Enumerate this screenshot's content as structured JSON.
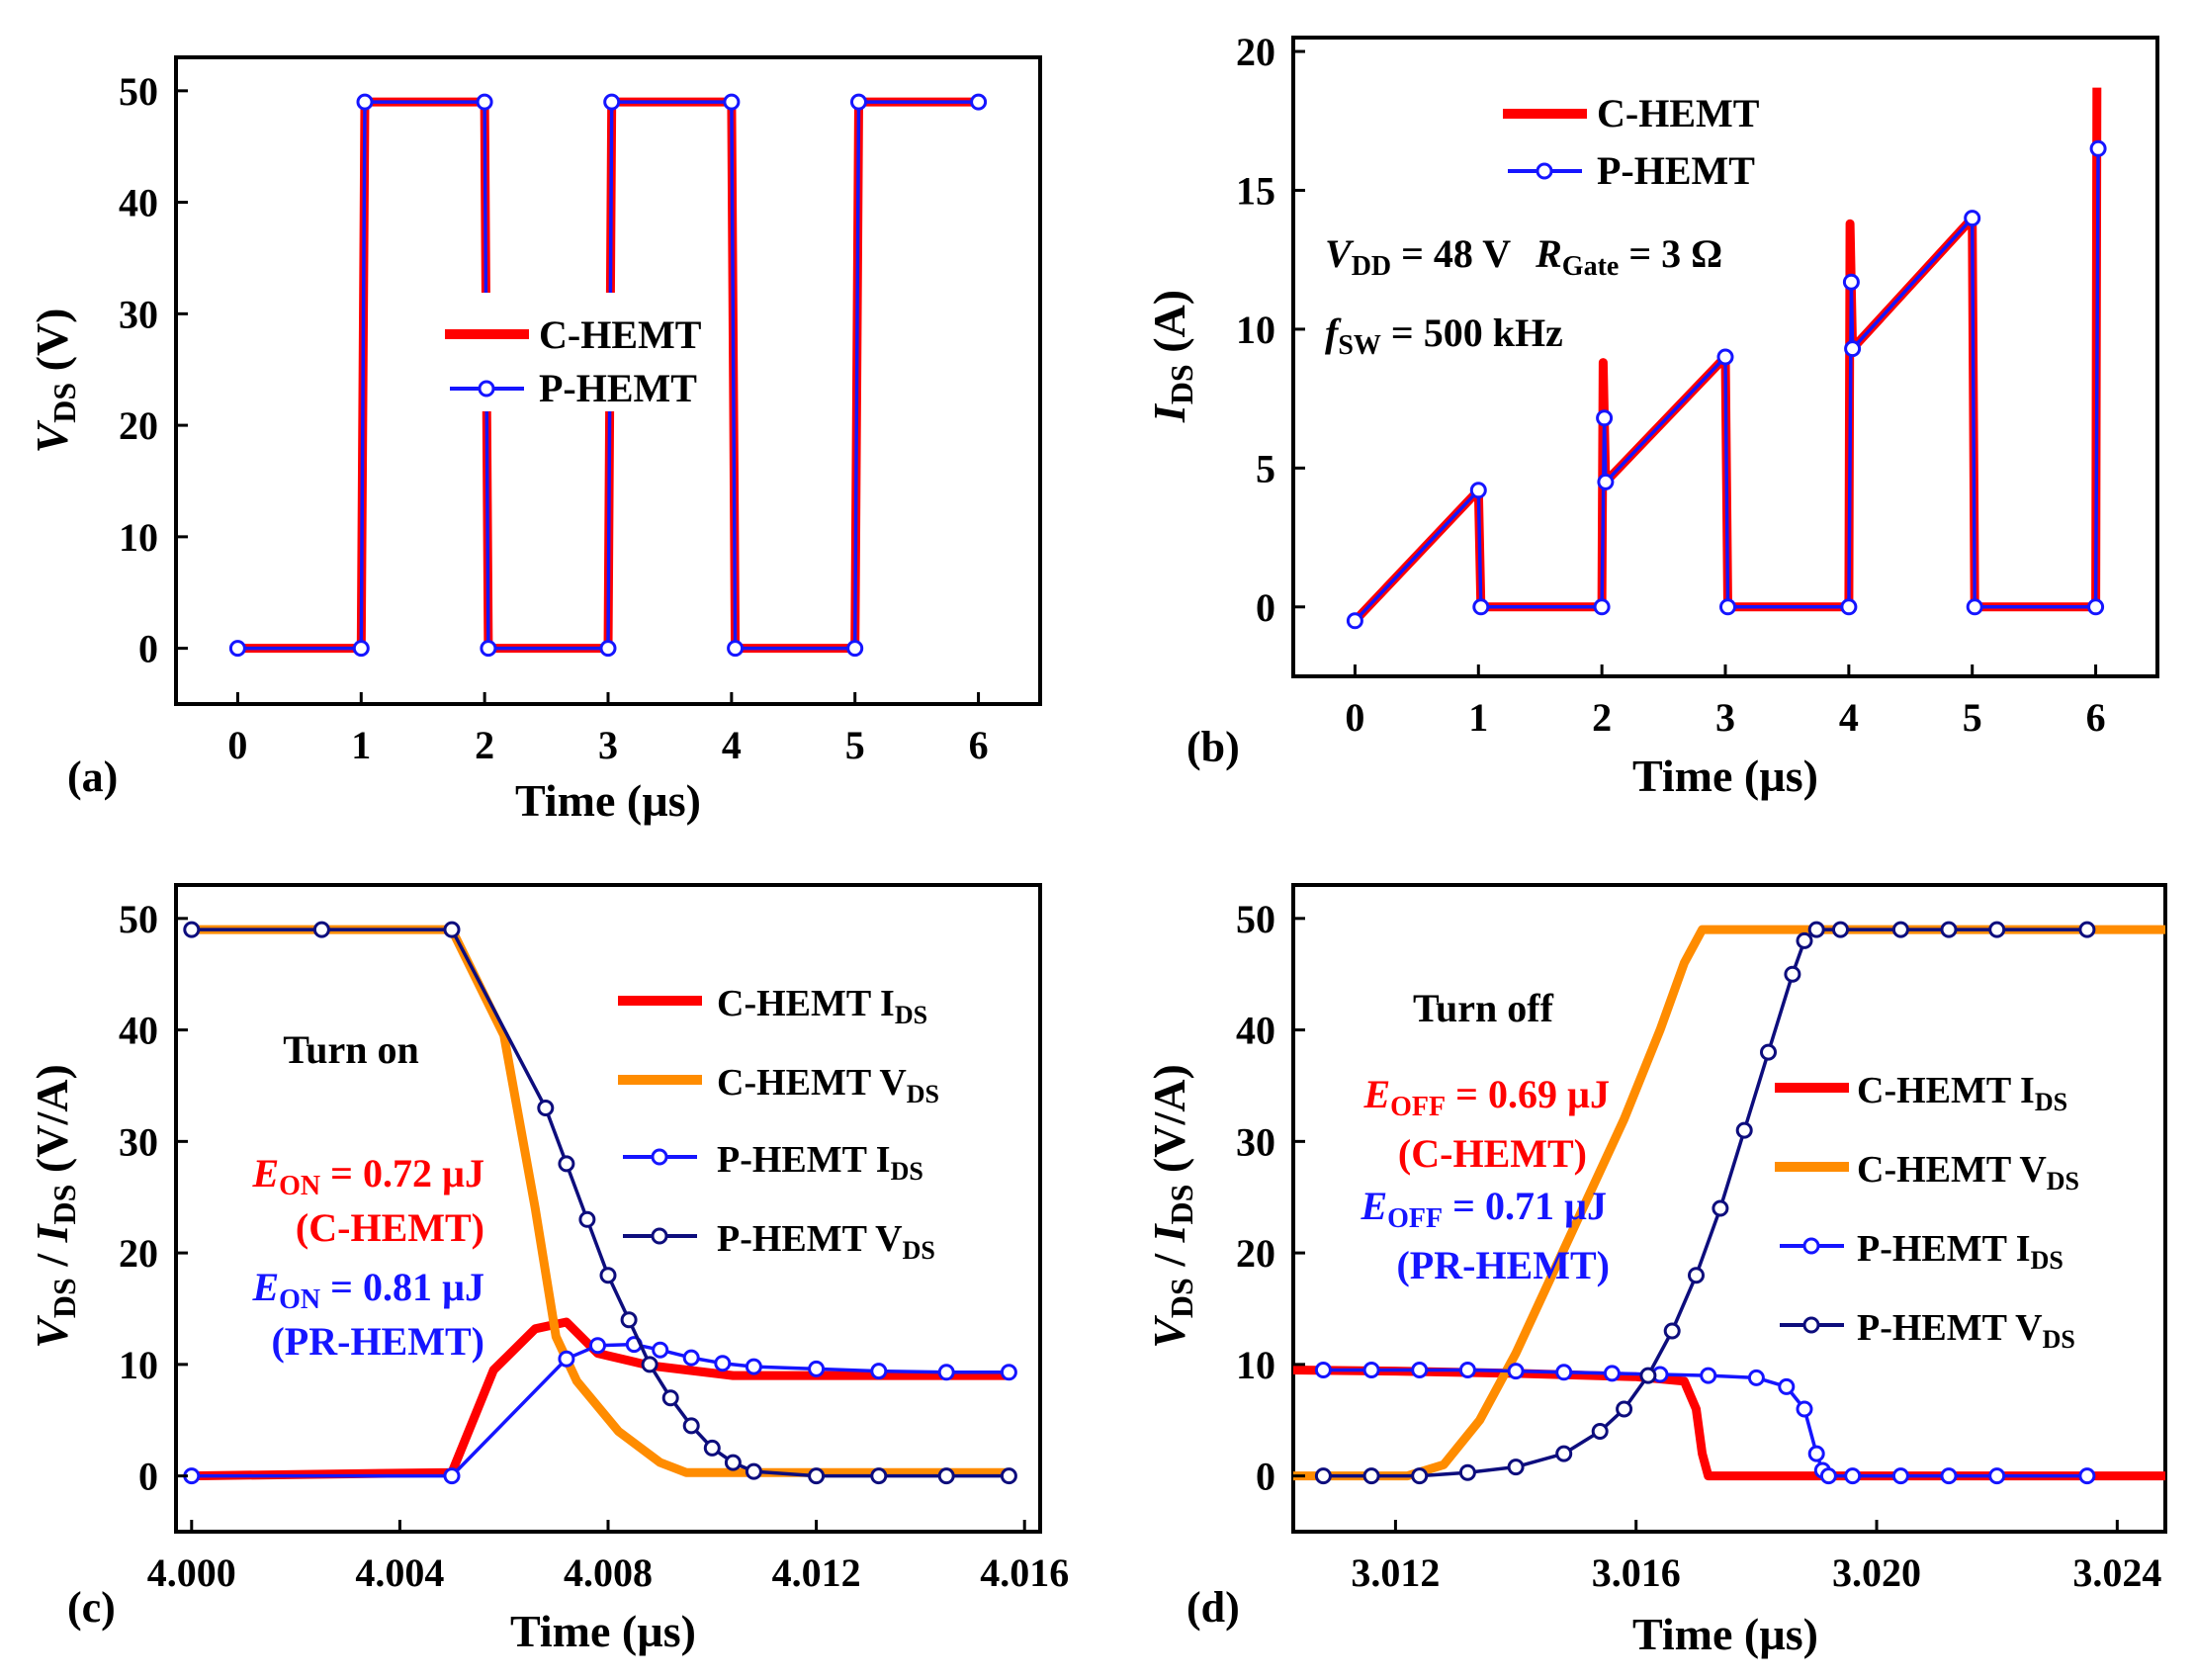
{
  "colors": {
    "c_ids": "#ff0000",
    "c_vds": "#ff8c00",
    "p_ids": "#1515ff",
    "p_vds": "#0d0d7d",
    "axis": "#000000"
  },
  "chart_data": [
    {
      "id": "a",
      "type": "line",
      "panel_label": "(a)",
      "xlabel": "Time (µs)",
      "ylabel_main": "V",
      "ylabel_sub": "DS",
      "ylabel_tail": " (V)",
      "xlim": [
        -0.5,
        6.5
      ],
      "ylim": [
        -5,
        53
      ],
      "xticks": [
        0,
        1,
        2,
        3,
        4,
        5,
        6
      ],
      "yticks": [
        0,
        10,
        20,
        30,
        40,
        50
      ],
      "xtick_labels": [
        "0",
        "1",
        "2",
        "3",
        "4",
        "5",
        "6"
      ],
      "ytick_labels": [
        "0",
        "10",
        "20",
        "30",
        "40",
        "50"
      ],
      "legend": [
        "C-HEMT",
        "P-HEMT"
      ],
      "series": [
        {
          "name": "C-HEMT",
          "style": "thick",
          "color": "#ff0000",
          "x": [
            0,
            1,
            1.03,
            2,
            2.03,
            3,
            3.03,
            4,
            4.03,
            5,
            5.03,
            6
          ],
          "y": [
            0,
            0,
            49,
            49,
            0,
            0,
            49,
            49,
            0,
            0,
            49,
            49
          ]
        },
        {
          "name": "P-HEMT",
          "style": "marker",
          "color": "#1515ff",
          "x": [
            0,
            1,
            1.03,
            2,
            2.03,
            3,
            3.03,
            4,
            4.03,
            5,
            5.03,
            6
          ],
          "y": [
            0,
            0,
            49,
            49,
            0,
            0,
            49,
            49,
            0,
            0,
            49,
            49
          ]
        }
      ]
    },
    {
      "id": "b",
      "type": "line",
      "panel_label": "(b)",
      "xlabel": "Time (µs)",
      "ylabel_main": "I",
      "ylabel_sub": "DS",
      "ylabel_tail": " (A)",
      "xlim": [
        -0.5,
        6.5
      ],
      "ylim": [
        -2.5,
        20.5
      ],
      "xticks": [
        0,
        1,
        2,
        3,
        4,
        5,
        6
      ],
      "yticks": [
        0,
        5,
        10,
        15,
        20
      ],
      "xtick_labels": [
        "0",
        "1",
        "2",
        "3",
        "4",
        "5",
        "6"
      ],
      "ytick_labels": [
        "0",
        "5",
        "10",
        "15",
        "20"
      ],
      "legend": [
        "C-HEMT",
        "P-HEMT"
      ],
      "annotations": {
        "vdd_main": "V",
        "vdd_sub": "DD",
        "vdd_val": " = 48 V",
        "rg_main": "R",
        "rg_sub": "Gate",
        "rg_val": " = 3 Ω",
        "fsw_main": "f",
        "fsw_sub": "SW",
        "fsw_val": " = 500 kHz"
      },
      "series": [
        {
          "name": "C-HEMT",
          "style": "thick",
          "color": "#ff0000",
          "x": [
            0,
            1,
            1.02,
            2,
            2.01,
            2.03,
            3,
            3.02,
            4,
            4.01,
            4.03,
            5,
            5.02,
            6,
            6.01
          ],
          "y": [
            -0.5,
            4.2,
            0,
            0,
            8.8,
            4.5,
            9,
            0,
            0,
            13.8,
            9.3,
            14,
            0,
            0,
            18.7
          ]
        },
        {
          "name": "P-HEMT",
          "style": "marker",
          "color": "#1515ff",
          "x": [
            0,
            1,
            1.02,
            2,
            2.02,
            2.03,
            3,
            3.02,
            4,
            4.02,
            4.03,
            5,
            5.02,
            6,
            6.02
          ],
          "y": [
            -0.5,
            4.2,
            0,
            0,
            6.8,
            4.5,
            9,
            0,
            0,
            11.7,
            9.3,
            14,
            0,
            0,
            16.5
          ]
        }
      ]
    },
    {
      "id": "c",
      "type": "line",
      "panel_label": "(c)",
      "xlabel": "Time (µs)",
      "ylabel_main": "V",
      "ylabel_sub": "DS",
      "ylabel_sep": " / ",
      "ylabel_main2": "I",
      "ylabel_sub2": "DS",
      "ylabel_tail": " (V/A)",
      "xlim": [
        3.9997,
        4.0163
      ],
      "ylim": [
        -5,
        53
      ],
      "xticks": [
        4.0,
        4.004,
        4.008,
        4.012,
        4.016
      ],
      "yticks": [
        0,
        10,
        20,
        30,
        40,
        50
      ],
      "xtick_labels": [
        "4.000",
        "4.004",
        "4.008",
        "4.012",
        "4.016"
      ],
      "ytick_labels": [
        "0",
        "10",
        "20",
        "30",
        "40",
        "50"
      ],
      "legend": [
        "C-HEMT I",
        "C-HEMT V",
        "P-HEMT I",
        "P-HEMT V"
      ],
      "legend_sub": "DS",
      "annotations": {
        "title": "Turn on",
        "e1_main": "E",
        "e1_sub": "ON",
        "e1_val": " = 0.72 µJ",
        "e1_dev": "(C-HEMT)",
        "e2_main": "E",
        "e2_sub": "ON",
        "e2_val": " = 0.81 µJ",
        "e2_dev": "(PR-HEMT)"
      },
      "series": [
        {
          "name": "C-HEMT IDS",
          "style": "thick",
          "color": "#ff0000",
          "x": [
            4.0,
            4.005,
            4.0058,
            4.0066,
            4.0072,
            4.0078,
            4.0088,
            4.0104,
            4.0157
          ],
          "y": [
            0,
            0.3,
            9.5,
            13.2,
            13.8,
            11,
            9.9,
            9,
            9
          ]
        },
        {
          "name": "C-HEMT VDS",
          "style": "thick",
          "color": "#ff8c00",
          "x": [
            4.0,
            4.005,
            4.006,
            4.0066,
            4.007,
            4.0074,
            4.0082,
            4.009,
            4.0095,
            4.0157
          ],
          "y": [
            49,
            49,
            39.5,
            24,
            12.5,
            8.5,
            4,
            1.2,
            0.3,
            0.3
          ]
        },
        {
          "name": "P-HEMT IDS",
          "style": "marker",
          "color": "#1515ff",
          "x": [
            4.0,
            4.005,
            4.0072,
            4.0078,
            4.0085,
            4.009,
            4.0096,
            4.0102,
            4.0108,
            4.012,
            4.0132,
            4.0145,
            4.0157
          ],
          "y": [
            0,
            0,
            10.5,
            11.7,
            11.8,
            11.3,
            10.6,
            10.1,
            9.8,
            9.6,
            9.4,
            9.3,
            9.3
          ]
        },
        {
          "name": "P-HEMT VDS",
          "style": "marker",
          "color": "#0d0d7d",
          "x": [
            4.0,
            4.0025,
            4.005,
            4.0068,
            4.0072,
            4.0076,
            4.008,
            4.0084,
            4.0088,
            4.0092,
            4.0096,
            4.01,
            4.0104,
            4.0108,
            4.012,
            4.0132,
            4.0145,
            4.0157
          ],
          "y": [
            49,
            49,
            49,
            33,
            28,
            23,
            18,
            14,
            10,
            7,
            4.5,
            2.5,
            1.2,
            0.4,
            0,
            0,
            0,
            0
          ]
        }
      ]
    },
    {
      "id": "d",
      "type": "line",
      "panel_label": "(d)",
      "xlabel": "Time (µs)",
      "ylabel_main": "V",
      "ylabel_sub": "DS",
      "ylabel_sep": " / ",
      "ylabel_main2": "I",
      "ylabel_sub2": "DS",
      "ylabel_tail": " (V/A)",
      "xlim": [
        3.0103,
        3.0248
      ],
      "ylim": [
        -5,
        53
      ],
      "xticks": [
        3.012,
        3.016,
        3.02,
        3.024
      ],
      "yticks": [
        0,
        10,
        20,
        30,
        40,
        50
      ],
      "xtick_labels": [
        "3.012",
        "3.016",
        "3.020",
        "3.024"
      ],
      "ytick_labels": [
        "0",
        "10",
        "20",
        "30",
        "40",
        "50"
      ],
      "legend": [
        "C-HEMT I",
        "C-HEMT V",
        "P-HEMT I",
        "P-HEMT V"
      ],
      "legend_sub": "DS",
      "annotations": {
        "title": "Turn off",
        "e1_main": "E",
        "e1_sub": "OFF",
        "e1_val": " = 0.69 µJ",
        "e1_dev": "(C-HEMT)",
        "e2_main": "E",
        "e2_sub": "OFF",
        "e2_val": " = 0.71 µJ",
        "e2_dev": "(PR-HEMT)"
      },
      "series": [
        {
          "name": "C-HEMT IDS",
          "style": "thick",
          "color": "#ff0000",
          "x": [
            3.0103,
            3.012,
            3.014,
            3.016,
            3.0168,
            3.017,
            3.0171,
            3.0172,
            3.0248
          ],
          "y": [
            9.5,
            9.4,
            9.2,
            8.9,
            8.5,
            6,
            2,
            0,
            0
          ]
        },
        {
          "name": "C-HEMT VDS",
          "style": "thick",
          "color": "#ff8c00",
          "x": [
            3.0103,
            3.0122,
            3.0128,
            3.0134,
            3.014,
            3.0146,
            3.0152,
            3.0158,
            3.0164,
            3.0168,
            3.0171,
            3.0248
          ],
          "y": [
            0,
            0,
            1,
            5,
            11,
            18,
            25,
            32,
            40,
            46,
            49,
            49
          ]
        },
        {
          "name": "P-HEMT IDS",
          "style": "marker",
          "color": "#1515ff",
          "x": [
            3.0108,
            3.0116,
            3.0124,
            3.0132,
            3.014,
            3.0148,
            3.0156,
            3.0164,
            3.0172,
            3.018,
            3.0185,
            3.0188,
            3.019,
            3.0191,
            3.0192,
            3.0196,
            3.0204,
            3.0212,
            3.022,
            3.0235
          ],
          "y": [
            9.5,
            9.5,
            9.5,
            9.5,
            9.4,
            9.3,
            9.2,
            9.1,
            9,
            8.8,
            8,
            6,
            2,
            0.5,
            0,
            0,
            0,
            0,
            0,
            0
          ]
        },
        {
          "name": "P-HEMT VDS",
          "style": "marker",
          "color": "#0d0d7d",
          "x": [
            3.0108,
            3.0116,
            3.0124,
            3.0132,
            3.014,
            3.0148,
            3.0154,
            3.0158,
            3.0162,
            3.0166,
            3.017,
            3.0174,
            3.0178,
            3.0182,
            3.0186,
            3.0188,
            3.019,
            3.0194,
            3.0204,
            3.0212,
            3.022,
            3.0235
          ],
          "y": [
            0,
            0,
            0,
            0.3,
            0.8,
            2,
            4,
            6,
            9,
            13,
            18,
            24,
            31,
            38,
            45,
            48,
            49,
            49,
            49,
            49,
            49,
            49
          ]
        }
      ]
    }
  ]
}
